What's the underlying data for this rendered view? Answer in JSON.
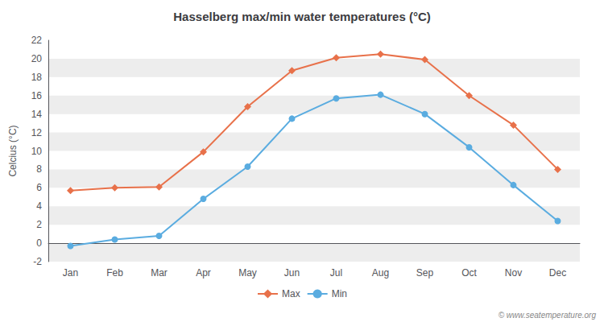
{
  "chart_data": {
    "type": "line",
    "title": "Hasselberg max/min water temperatures (°C)",
    "ylabel": "Celcius (°C)",
    "categories": [
      "Jan",
      "Feb",
      "Mar",
      "Apr",
      "May",
      "Jun",
      "Jul",
      "Aug",
      "Sep",
      "Oct",
      "Nov",
      "Dec"
    ],
    "series": [
      {
        "name": "Max",
        "color": "#e8714a",
        "marker": "diamond",
        "values": [
          5.7,
          6.0,
          6.1,
          9.9,
          14.8,
          18.7,
          20.1,
          20.5,
          19.9,
          16.0,
          12.8,
          8.0
        ]
      },
      {
        "name": "Min",
        "color": "#5aace0",
        "marker": "circle",
        "values": [
          -0.3,
          0.4,
          0.8,
          4.8,
          8.3,
          13.5,
          15.7,
          16.1,
          14.0,
          10.4,
          6.3,
          2.4
        ]
      }
    ],
    "ylim": [
      -2,
      22
    ],
    "yticks": [
      -2,
      0,
      2,
      4,
      6,
      8,
      10,
      12,
      14,
      16,
      18,
      20,
      22
    ],
    "grid": false,
    "legend": "bottom",
    "annotations": [
      "© www.seatemperature.org"
    ]
  }
}
